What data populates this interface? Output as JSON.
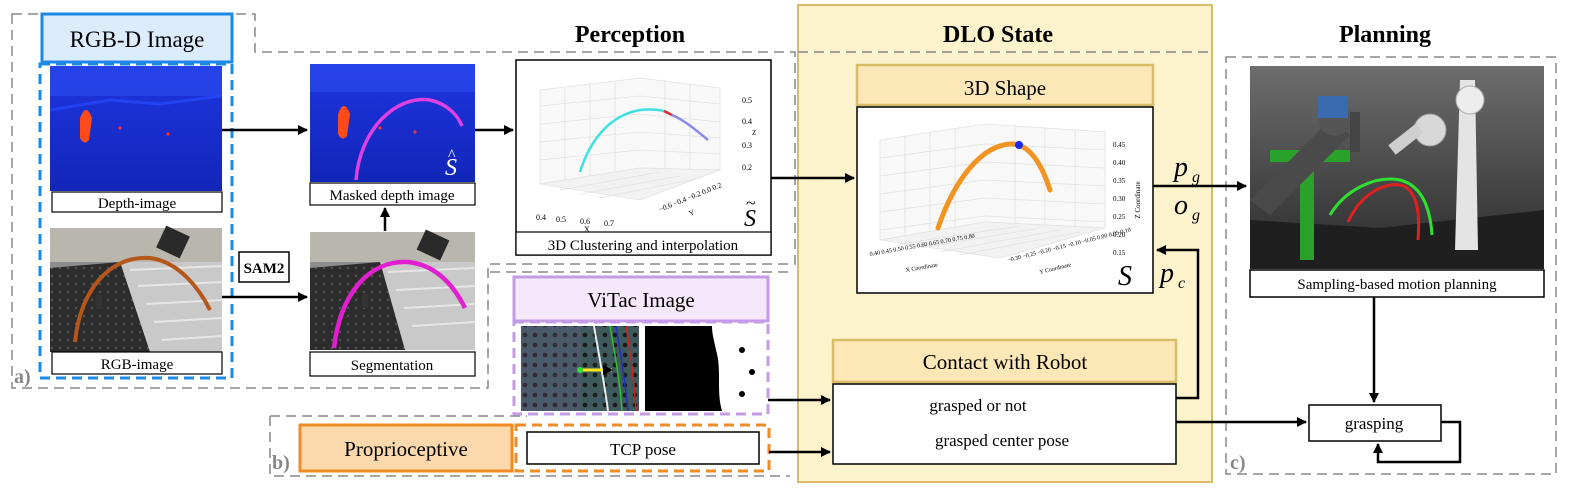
{
  "sections": {
    "perception": "Perception",
    "dlo_state": "DLO State",
    "planning": "Planning"
  },
  "panel_labels": {
    "a": "a)",
    "b": "b)",
    "c": "c)"
  },
  "rgbd": {
    "title": "RGB-D Image",
    "depth_caption": "Depth-image",
    "rgb_caption": "RGB-image"
  },
  "sam2_label": "SAM2",
  "masked_caption": "Masked depth image",
  "segmentation_caption": "Segmentation",
  "s_hat": "S",
  "clustering": {
    "caption": "3D Clustering and interpolation",
    "s_tilde": "S",
    "z_ticks": [
      "0.5",
      "0.4",
      "0.3",
      "0.2"
    ],
    "z_axis": "Z",
    "x_ticks": [
      "0.4",
      "0.5",
      "0.6",
      "0.7"
    ],
    "x_axis": "X",
    "y_ticks": "−0.6 −0.4 −0.2  0.0  0.2",
    "y_axis": "Y"
  },
  "shape3d": {
    "title": "3D Shape",
    "s_label": "S",
    "z_ticks": [
      "0.45",
      "0.40",
      "0.35",
      "0.30",
      "0.25",
      "0.20",
      "0.15"
    ],
    "z_axis": "Z Coordinate",
    "x_ticks": "0.40 0.45 0.50 0.55 0.60 0.65 0.70 0.75 0.80",
    "x_axis": "X Coordinate",
    "y_ticks": "−0.30 −0.25 −0.20 −0.15 −0.10 −0.05 0.00 0.05 0.10",
    "y_axis": "Y Coordinate"
  },
  "vitac": {
    "title": "ViTac Image"
  },
  "contact": {
    "title": "Contact with Robot",
    "line1": "grasped or not",
    "line2": "grasped center pose"
  },
  "proprio": {
    "title": "Proprioceptive",
    "tcp": "TCP pose"
  },
  "planning": {
    "caption": "Sampling-based motion planning",
    "grasping": "grasping"
  },
  "arrow_labels": {
    "pg": "p",
    "pg_sub": "g",
    "og": "o",
    "og_sub": "g",
    "pc": "p",
    "pc_sub": "c"
  },
  "colors": {
    "blue_frame": "#1e88e5",
    "orange_frame": "#f08a24",
    "purple_frame": "#c39be6",
    "gold_frame": "#d9bc6a",
    "dlo_bg": "#fcf3cc",
    "shape_orange": "#f5a623",
    "purple_title_bg": "#f6e8fb",
    "orange_title_bg": "#fbd9ad",
    "gold_title_bg": "#fce7b6"
  }
}
